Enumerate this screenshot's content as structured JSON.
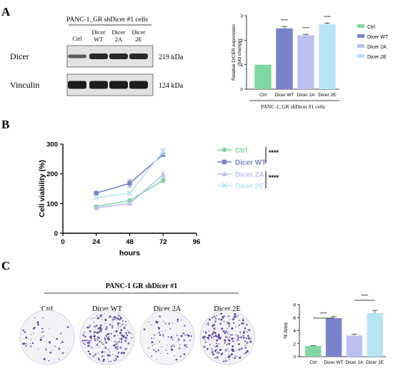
{
  "panels": {
    "A": {
      "letter": "A",
      "blot": {
        "cell_line_label": "PANC-1_GR shDicer #1 cells",
        "lanes": [
          "Ctrl",
          "Dicer WT",
          "Dicer 2A",
          "Dicer 2E"
        ],
        "rows": [
          {
            "name": "Dicer",
            "kda": "219 kDa"
          },
          {
            "name": "Vinculin",
            "kda": "124 kDa"
          }
        ]
      },
      "chart_data": {
        "type": "bar",
        "ylabel": "Relative DICER expression (fold change)",
        "ylabel_lines": [
          "Relative DICER expression",
          "(fold change)"
        ],
        "xgroup_label": "PANC-1_GR shDicer #1 cells",
        "categories": [
          "Ctrl",
          "Dicer WT",
          "Dicer 2A",
          "Dicer 2E"
        ],
        "values": [
          1.0,
          2.48,
          2.2,
          2.65
        ],
        "errors": [
          0,
          0.08,
          0.04,
          0.05
        ],
        "significance": [
          "",
          "****",
          "****",
          "****"
        ],
        "ylim": [
          0,
          3
        ],
        "yticks": [
          0,
          1,
          2,
          3
        ],
        "colors": [
          "#7fd7a4",
          "#7b82cc",
          "#bcc0f0",
          "#b8e4f6"
        ],
        "legend": [
          "Ctrl",
          "Dicer WT",
          "Dicer 2A",
          "Dicer 2E"
        ],
        "legend_position": "right"
      }
    },
    "B": {
      "letter": "B",
      "chart_data": {
        "type": "line",
        "xlabel": "hours",
        "ylabel": "Cell viability (%)",
        "xlim": [
          0,
          96
        ],
        "ylim": [
          0,
          300
        ],
        "xticks": [
          0,
          24,
          48,
          72,
          96
        ],
        "yticks": [
          0,
          100,
          200,
          300
        ],
        "x": [
          24,
          48,
          72
        ],
        "series": [
          {
            "name": "Ctrl",
            "values": [
              90,
              110,
              178
            ],
            "errors": [
              5,
              6,
              7
            ],
            "color": "#7fd7a4",
            "marker": "circle"
          },
          {
            "name": "Dicer WT",
            "values": [
              135,
              168,
              265
            ],
            "errors": [
              4,
              12,
              6
            ],
            "color": "#7b82cc",
            "marker": "square"
          },
          {
            "name": "Dicer 2A",
            "values": [
              85,
              100,
              198
            ],
            "errors": [
              4,
              5,
              8
            ],
            "color": "#bcc0f0",
            "marker": "triangle"
          },
          {
            "name": "Dicer 2E",
            "values": [
              120,
              135,
              275
            ],
            "errors": [
              4,
              6,
              10
            ],
            "color": "#b8e4f6",
            "marker": "cross"
          }
        ],
        "significance": [
          "****",
          "****"
        ],
        "legend_position": "right"
      }
    },
    "C": {
      "letter": "C",
      "header": "PANC-1 GR shDicer #1",
      "wells": [
        {
          "label": "Ctrl",
          "density": 0.18
        },
        {
          "label": "Dicer WT",
          "density": 0.85
        },
        {
          "label": "Dicer 2A",
          "density": 0.3
        },
        {
          "label": "Dicer 2E",
          "density": 0.8
        }
      ],
      "chart_data": {
        "type": "bar",
        "ylabel": "% Area",
        "categories": [
          "Ctrl",
          "Dicer WT",
          "Dicer 2A",
          "Dicer 2E"
        ],
        "values": [
          1.65,
          5.9,
          3.25,
          6.7
        ],
        "errors": [
          0.05,
          0.25,
          0.2,
          0.4
        ],
        "ylim": [
          0,
          8
        ],
        "yticks": [
          0,
          2,
          4,
          6,
          8
        ],
        "colors": [
          "#7fd7a4",
          "#7b82cc",
          "#bcc0f0",
          "#b8e4f6"
        ],
        "significance": [
          "****",
          "****"
        ]
      }
    }
  }
}
